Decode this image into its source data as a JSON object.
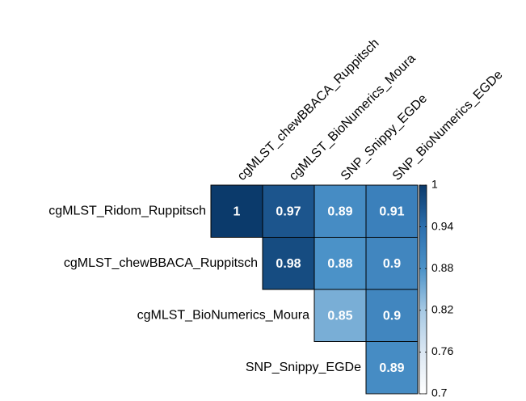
{
  "chart_data": {
    "type": "heatmap",
    "columns": [
      "cgMLST_chewBBACA_Ruppitsch",
      "cgMLST_BioNumerics_Moura",
      "SNP_Snippy_EGDe",
      "SNP_BioNumerics_EGDe"
    ],
    "rows": [
      "cgMLST_Ridom_Ruppitsch",
      "cgMLST_chewBBACA_Ruppitsch",
      "cgMLST_BioNumerics_Moura",
      "SNP_Snippy_EGDe"
    ],
    "values": [
      [
        1,
        0.97,
        0.89,
        0.91
      ],
      [
        null,
        0.98,
        0.88,
        0.9
      ],
      [
        null,
        null,
        0.85,
        0.9
      ],
      [
        null,
        null,
        null,
        0.89
      ]
    ],
    "colorscale": [
      "#ffffff",
      "#dbe7f3",
      "#a6c9e4",
      "#4b92c8",
      "#2c6fae",
      "#0b3a6b"
    ],
    "clim": [
      0.7,
      1
    ],
    "cticks": [
      1,
      0.94,
      0.88,
      0.82,
      0.76,
      0.7
    ]
  }
}
